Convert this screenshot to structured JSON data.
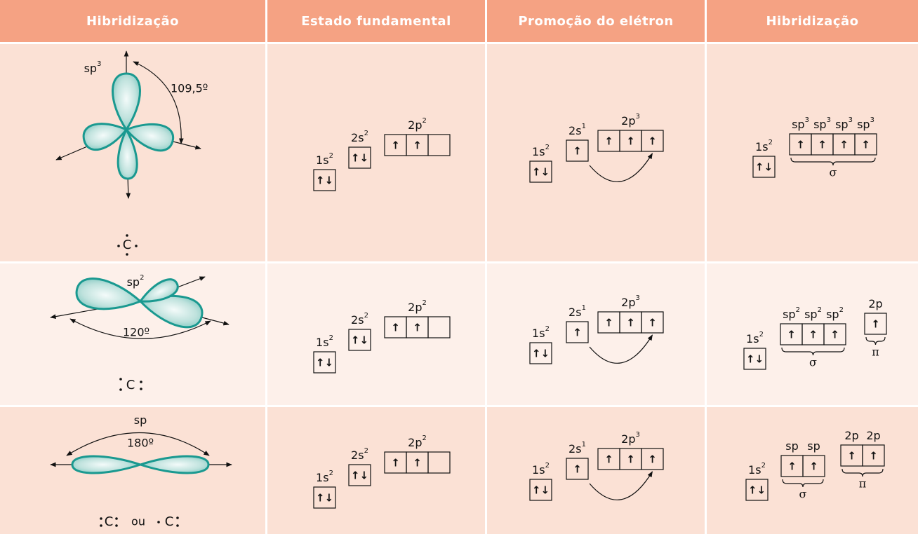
{
  "header": [
    "Hibridização",
    "Estado fundamental",
    "Promoção do elétron",
    "Hibridização"
  ],
  "rows": [
    {
      "geometry": {
        "label": {
          "base": "sp",
          "sup": "3"
        },
        "angle": "109,5º",
        "lewis": [
          "C"
        ]
      },
      "ground": [
        {
          "label": {
            "base": "1s",
            "sup": "2"
          },
          "boxes": [
            "↑↓"
          ]
        },
        {
          "label": {
            "base": "2s",
            "sup": "2"
          },
          "boxes": [
            "↑↓"
          ]
        },
        {
          "label": {
            "base": "2p",
            "sup": "2"
          },
          "boxes": [
            "↑",
            "↑",
            null
          ]
        }
      ],
      "promotion": [
        {
          "label": {
            "base": "1s",
            "sup": "2"
          },
          "boxes": [
            "↑↓"
          ]
        },
        {
          "label": {
            "base": "2s",
            "sup": "1"
          },
          "boxes": [
            "↑"
          ]
        },
        {
          "label": {
            "base": "2p",
            "sup": "3"
          },
          "boxes": [
            "↑",
            "↑",
            "↑"
          ]
        }
      ],
      "hybrid": [
        {
          "labels": [
            {
              "base": "1s",
              "sup": "2"
            }
          ],
          "boxes": [
            "↑↓"
          ]
        },
        {
          "labels": [
            {
              "base": "sp",
              "sup": "3"
            },
            {
              "base": "sp",
              "sup": "3"
            },
            {
              "base": "sp",
              "sup": "3"
            },
            {
              "base": "sp",
              "sup": "3"
            }
          ],
          "boxes": [
            "↑",
            "↑",
            "↑",
            "↑"
          ],
          "bond": "σ"
        }
      ]
    },
    {
      "geometry": {
        "label": {
          "base": "sp",
          "sup": "2"
        },
        "angle": "120º",
        "lewis": [
          "C"
        ]
      },
      "ground": [
        {
          "label": {
            "base": "1s",
            "sup": "2"
          },
          "boxes": [
            "↑↓"
          ]
        },
        {
          "label": {
            "base": "2s",
            "sup": "2"
          },
          "boxes": [
            "↑↓"
          ]
        },
        {
          "label": {
            "base": "2p",
            "sup": "2"
          },
          "boxes": [
            "↑",
            "↑",
            null
          ]
        }
      ],
      "promotion": [
        {
          "label": {
            "base": "1s",
            "sup": "2"
          },
          "boxes": [
            "↑↓"
          ]
        },
        {
          "label": {
            "base": "2s",
            "sup": "1"
          },
          "boxes": [
            "↑"
          ]
        },
        {
          "label": {
            "base": "2p",
            "sup": "3"
          },
          "boxes": [
            "↑",
            "↑",
            "↑"
          ]
        }
      ],
      "hybrid": [
        {
          "labels": [
            {
              "base": "1s",
              "sup": "2"
            }
          ],
          "boxes": [
            "↑↓"
          ]
        },
        {
          "labels": [
            {
              "base": "sp",
              "sup": "2"
            },
            {
              "base": "sp",
              "sup": "2"
            },
            {
              "base": "sp",
              "sup": "2"
            }
          ],
          "boxes": [
            "↑",
            "↑",
            "↑"
          ],
          "bond": "σ"
        },
        {
          "labels": [
            {
              "base": "2p"
            }
          ],
          "boxes": [
            "↑"
          ],
          "bond": "π"
        }
      ]
    },
    {
      "geometry": {
        "label": {
          "base": "sp"
        },
        "angle": "180º",
        "lewis": [
          "C",
          "ou",
          "C"
        ]
      },
      "ground": [
        {
          "label": {
            "base": "1s",
            "sup": "2"
          },
          "boxes": [
            "↑↓"
          ]
        },
        {
          "label": {
            "base": "2s",
            "sup": "2"
          },
          "boxes": [
            "↑↓"
          ]
        },
        {
          "label": {
            "base": "2p",
            "sup": "2"
          },
          "boxes": [
            "↑",
            "↑",
            null
          ]
        }
      ],
      "promotion": [
        {
          "label": {
            "base": "1s",
            "sup": "2"
          },
          "boxes": [
            "↑↓"
          ]
        },
        {
          "label": {
            "base": "2s",
            "sup": "1"
          },
          "boxes": [
            "↑"
          ]
        },
        {
          "label": {
            "base": "2p",
            "sup": "3"
          },
          "boxes": [
            "↑",
            "↑",
            "↑"
          ]
        }
      ],
      "hybrid": [
        {
          "labels": [
            {
              "base": "1s",
              "sup": "2"
            }
          ],
          "boxes": [
            "↑↓"
          ]
        },
        {
          "labels": [
            {
              "base": "sp"
            },
            {
              "base": "sp"
            }
          ],
          "boxes": [
            "↑",
            "↑"
          ],
          "bond": "σ"
        },
        {
          "labels": [
            {
              "base": "2p"
            },
            {
              "base": "2p"
            }
          ],
          "boxes": [
            "↑",
            "↑"
          ],
          "bond": "π"
        }
      ]
    }
  ]
}
